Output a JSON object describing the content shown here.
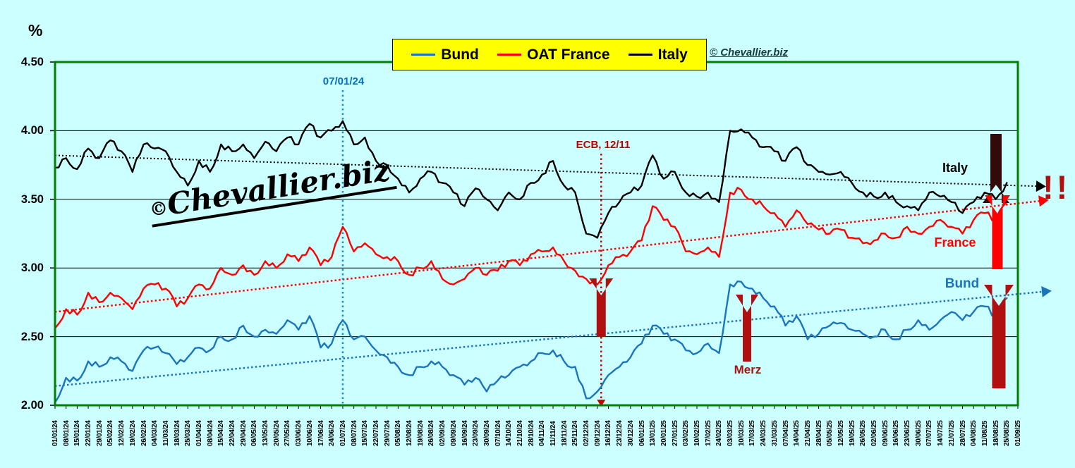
{
  "percent_label": "%",
  "watermark_symbol": "©",
  "watermark_text": "Chevallier.biz",
  "copyright": "© Chevallier.biz",
  "legend": {
    "items": [
      {
        "label": "Bund",
        "color": "#1B75BC"
      },
      {
        "label": "OAT France",
        "color": "#FF0000"
      },
      {
        "label": "Italy",
        "color": "#000000"
      }
    ]
  },
  "annotations": {
    "july_line_label": "07/01/24",
    "ecb_label": "ECB, 12/11",
    "merz_label": "Merz",
    "italy_label": "Italy",
    "france_label": "France",
    "bund_label": "Bund",
    "alert_label": "!!"
  },
  "colors": {
    "background": "#CCFFFF",
    "plot_border": "#008000",
    "gridline": "#000000",
    "bund": "#1B75BC",
    "france": "#FF0000",
    "italy": "#000000",
    "dark_red": "#B01010",
    "maroon": "#330A0A",
    "annotation_blue": "#0070C0",
    "ecb_line_red": "#CC0000",
    "legend_bg": "#FFFF00"
  },
  "chart_data": {
    "type": "line",
    "ylabel": "%",
    "ylim": [
      2.0,
      4.5
    ],
    "grid": true,
    "legend_position": "top-center",
    "y_ticks": [
      "4.50",
      "4.00",
      "3.50",
      "3.00",
      "2.50",
      "2.00"
    ],
    "x_labels": [
      "01/01/24",
      "08/01/24",
      "15/01/24",
      "22/01/24",
      "29/01/24",
      "05/02/24",
      "12/02/24",
      "19/02/24",
      "26/02/24",
      "04/03/24",
      "11/03/24",
      "18/03/24",
      "25/03/24",
      "01/04/24",
      "08/04/24",
      "15/04/24",
      "22/04/24",
      "29/04/24",
      "06/05/24",
      "13/05/24",
      "20/05/24",
      "27/05/24",
      "03/06/24",
      "10/06/24",
      "17/06/24",
      "24/06/24",
      "01/07/24",
      "08/07/24",
      "15/07/24",
      "22/07/24",
      "29/07/24",
      "05/08/24",
      "12/08/24",
      "19/08/24",
      "26/08/24",
      "02/09/24",
      "09/09/24",
      "16/09/24",
      "23/09/24",
      "30/09/24",
      "07/10/24",
      "14/10/24",
      "21/10/24",
      "28/10/24",
      "04/11/24",
      "11/11/24",
      "18/11/24",
      "25/11/24",
      "02/12/24",
      "09/12/24",
      "16/12/24",
      "23/12/24",
      "30/12/24",
      "06/01/25",
      "13/01/25",
      "20/01/25",
      "27/01/25",
      "03/02/25",
      "10/02/25",
      "17/02/25",
      "24/02/25",
      "03/03/25",
      "10/03/25",
      "17/03/25",
      "24/03/25",
      "31/03/25",
      "07/04/25",
      "14/04/25",
      "21/04/25",
      "28/04/25",
      "05/05/25",
      "12/05/25",
      "19/05/25",
      "26/05/25",
      "02/06/25",
      "09/06/25",
      "16/06/25",
      "23/06/25",
      "30/06/25",
      "07/07/25",
      "14/07/25",
      "21/07/25",
      "28/07/25",
      "04/08/25",
      "11/08/25",
      "18/08/25",
      "25/08/25",
      "01/09/25"
    ],
    "series": [
      {
        "name": "Bund",
        "color": "#1B75BC",
        "values": [
          2.02,
          2.2,
          2.18,
          2.32,
          2.28,
          2.35,
          2.32,
          2.25,
          2.4,
          2.42,
          2.38,
          2.3,
          2.35,
          2.42,
          2.4,
          2.5,
          2.48,
          2.58,
          2.5,
          2.55,
          2.52,
          2.62,
          2.55,
          2.65,
          2.42,
          2.45,
          2.62,
          2.48,
          2.5,
          2.4,
          2.35,
          2.28,
          2.22,
          2.28,
          2.32,
          2.28,
          2.22,
          2.15,
          2.2,
          2.1,
          2.18,
          2.22,
          2.28,
          2.32,
          2.38,
          2.4,
          2.32,
          2.28,
          2.05,
          2.1,
          2.22,
          2.28,
          2.35,
          2.45,
          2.58,
          2.52,
          2.48,
          2.4,
          2.38,
          2.45,
          2.38,
          2.88,
          2.9,
          2.85,
          2.78,
          2.72,
          2.58,
          2.65,
          2.48,
          2.52,
          2.58,
          2.6,
          2.55,
          2.52,
          2.5,
          2.55,
          2.48,
          2.55,
          2.62,
          2.55,
          2.62,
          2.68,
          2.62,
          2.68,
          2.72,
          2.65,
          2.78,
          null
        ]
      },
      {
        "name": "OAT France",
        "color": "#FF0000",
        "values": [
          2.56,
          2.7,
          2.66,
          2.82,
          2.75,
          2.82,
          2.78,
          2.7,
          2.85,
          2.88,
          2.85,
          2.72,
          2.78,
          2.88,
          2.85,
          3.0,
          2.95,
          3.02,
          2.95,
          3.05,
          3.0,
          3.1,
          3.05,
          3.15,
          3.02,
          3.08,
          3.3,
          3.12,
          3.18,
          3.1,
          3.08,
          3.05,
          2.95,
          3.0,
          3.05,
          2.92,
          2.88,
          2.92,
          3.0,
          2.95,
          2.98,
          3.05,
          3.02,
          3.1,
          3.12,
          3.15,
          3.05,
          2.98,
          2.92,
          2.88,
          3.02,
          3.08,
          3.12,
          3.2,
          3.45,
          3.35,
          3.3,
          3.12,
          3.1,
          3.15,
          3.08,
          3.55,
          3.57,
          3.5,
          3.45,
          3.4,
          3.3,
          3.42,
          3.32,
          3.28,
          3.25,
          3.28,
          3.22,
          3.18,
          3.2,
          3.25,
          3.22,
          3.3,
          3.25,
          3.3,
          3.35,
          3.3,
          3.25,
          3.35,
          3.4,
          3.35,
          3.48,
          null
        ]
      },
      {
        "name": "Italy",
        "color": "#000000",
        "values": [
          3.73,
          3.8,
          3.72,
          3.87,
          3.8,
          3.93,
          3.85,
          3.7,
          3.9,
          3.87,
          3.85,
          3.7,
          3.6,
          3.78,
          3.7,
          3.9,
          3.85,
          3.9,
          3.8,
          3.92,
          3.85,
          3.95,
          3.9,
          4.05,
          3.95,
          4.0,
          4.07,
          3.9,
          3.95,
          3.78,
          3.75,
          3.65,
          3.55,
          3.65,
          3.7,
          3.62,
          3.55,
          3.45,
          3.58,
          3.5,
          3.42,
          3.55,
          3.5,
          3.62,
          3.68,
          3.78,
          3.6,
          3.55,
          3.25,
          3.22,
          3.4,
          3.48,
          3.55,
          3.6,
          3.82,
          3.65,
          3.7,
          3.55,
          3.52,
          3.55,
          3.48,
          4.0,
          4.01,
          3.95,
          3.88,
          3.85,
          3.78,
          3.88,
          3.75,
          3.7,
          3.68,
          3.7,
          3.62,
          3.55,
          3.52,
          3.55,
          3.48,
          3.45,
          3.42,
          3.55,
          3.52,
          3.48,
          3.4,
          3.48,
          3.55,
          3.5,
          3.62,
          null
        ]
      }
    ],
    "trend_lines": [
      {
        "series": "Italy",
        "color": "#000000",
        "start_value": 3.82,
        "end_value": 3.6,
        "arrow": true
      },
      {
        "series": "OAT France",
        "color": "#FF0000",
        "start_value": 2.68,
        "end_value": 3.47,
        "arrow": true
      },
      {
        "series": "Bund",
        "color": "#1B75BC",
        "start_value": 2.14,
        "end_value": 2.81,
        "arrow": true
      }
    ],
    "event_lines": [
      {
        "label": "07/01/24",
        "at_x_label": "01/07/24",
        "x_index": 26,
        "color": "#1E8BC3",
        "style": "dotted-vertical"
      },
      {
        "label": "ECB, 12/11",
        "at_x_label": "09/12/24",
        "x_index": 49.35,
        "color": "#CC0000",
        "style": "dotted-vertical-arrow-down"
      }
    ],
    "arrows": [
      {
        "id": "ecb-up",
        "direction": "up",
        "color": "#B01010"
      },
      {
        "id": "merz-up",
        "direction": "up",
        "color": "#B01010"
      },
      {
        "id": "italy-down",
        "direction": "down",
        "color": "#330A0A"
      },
      {
        "id": "france-up",
        "direction": "up",
        "color": "#FF0000"
      },
      {
        "id": "bund-up",
        "direction": "up",
        "color": "#B01010"
      }
    ]
  }
}
